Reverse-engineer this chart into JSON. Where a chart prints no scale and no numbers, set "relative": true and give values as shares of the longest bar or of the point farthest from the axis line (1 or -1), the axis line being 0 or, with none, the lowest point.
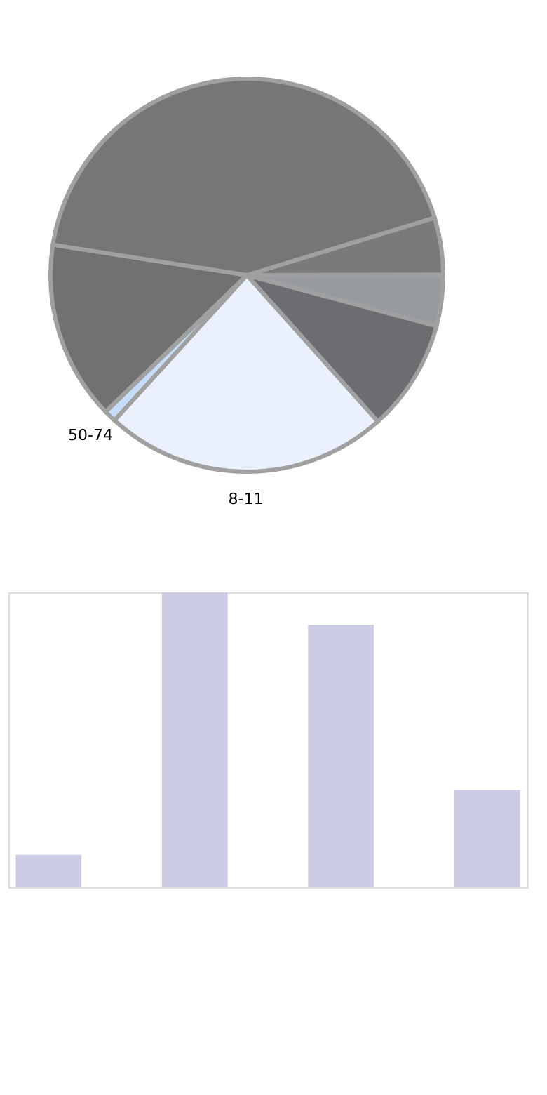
{
  "chart_data": [
    {
      "type": "pie",
      "categories": [
        null,
        null,
        null,
        "8-11",
        "50-74",
        null,
        null
      ],
      "values": [
        4.7,
        4.2,
        9.2,
        23.4,
        1,
        14.7,
        42.8
      ],
      "colors": [
        "#7a7a78",
        "#979a9f",
        "#6b6d70",
        "#eaf1fd",
        "#c6dcf8",
        "#717270",
        "#767775"
      ]
    },
    {
      "type": "bar",
      "relative": true,
      "categories": [
        null,
        null,
        null,
        null
      ],
      "values": [
        0.11,
        1,
        0.89,
        0.33
      ],
      "color": "#cccce4"
    }
  ]
}
